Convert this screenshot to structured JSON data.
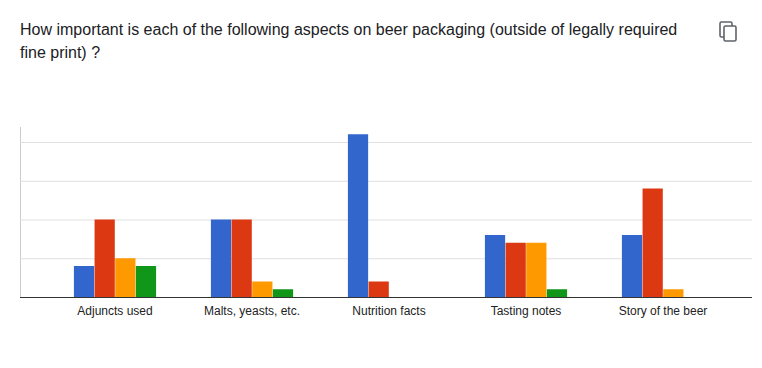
{
  "chart_data": {
    "type": "bar",
    "title": "How important is each of the following aspects on beer packaging (outside of legally required fine print) ?",
    "categories": [
      "Adjuncts used",
      "Malts, yeasts, etc.",
      "Nutrition facts",
      "Tasting notes",
      "Story of the beer"
    ],
    "series": [
      {
        "color": "#3366cc",
        "values": [
          4,
          10,
          21,
          8,
          8
        ]
      },
      {
        "color": "#dc3912",
        "values": [
          10,
          10,
          2,
          7,
          14
        ]
      },
      {
        "color": "#ff9900",
        "values": [
          5,
          2,
          0,
          7,
          1
        ]
      },
      {
        "color": "#109618",
        "values": [
          4,
          1,
          0,
          1,
          0
        ]
      }
    ],
    "ylim": [
      0,
      22
    ],
    "yticks": [
      0,
      5,
      10,
      15,
      20
    ],
    "grid": true,
    "tick_labels": "x"
  }
}
